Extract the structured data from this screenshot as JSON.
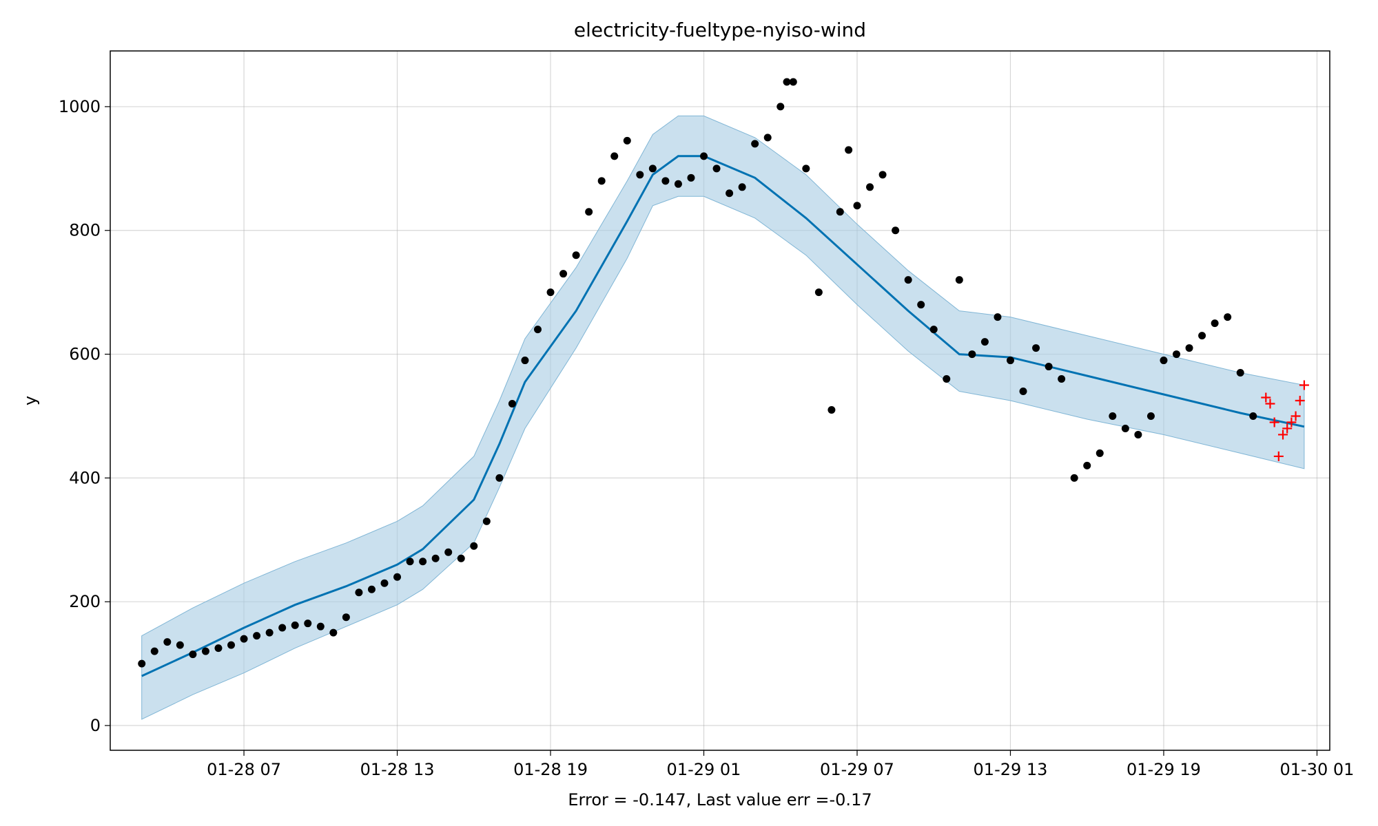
{
  "chart_data": {
    "type": "line",
    "title": "electricity-fueltype-nyiso-wind",
    "xlabel": "Error = -0.147, Last value err =-0.17",
    "ylabel": "y",
    "x_unit": "datetime",
    "xlim": [
      "2025-01-28T01:46",
      "2025-01-30T01:30"
    ],
    "ylim": [
      -40,
      1090
    ],
    "x_ticks": [
      "01-28 07",
      "01-28 13",
      "01-28 19",
      "01-29 01",
      "01-29 07",
      "01-29 13",
      "01-29 19",
      "01-30 01"
    ],
    "x_tick_values": [
      "2025-01-28T07:00",
      "2025-01-28T13:00",
      "2025-01-28T19:00",
      "2025-01-29T01:00",
      "2025-01-29T07:00",
      "2025-01-29T13:00",
      "2025-01-29T19:00",
      "2025-01-30T01:00"
    ],
    "y_ticks": [
      0,
      200,
      400,
      600,
      800,
      1000
    ],
    "grid": true,
    "colors": {
      "observed": "#000000",
      "forecast": "#0072B2",
      "band": "#A6CCE3",
      "band_edge": "#7FB5D5",
      "future": "#FF0000"
    },
    "forecast": {
      "x": [
        "2025-01-28T03:00",
        "2025-01-28T05:00",
        "2025-01-28T07:00",
        "2025-01-28T09:00",
        "2025-01-28T11:00",
        "2025-01-28T13:00",
        "2025-01-28T14:00",
        "2025-01-28T16:00",
        "2025-01-28T17:00",
        "2025-01-28T18:00",
        "2025-01-28T20:00",
        "2025-01-28T22:00",
        "2025-01-28T23:00",
        "2025-01-29T00:00",
        "2025-01-29T01:00",
        "2025-01-29T03:00",
        "2025-01-29T05:00",
        "2025-01-29T07:00",
        "2025-01-29T09:00",
        "2025-01-29T11:00",
        "2025-01-29T13:00",
        "2025-01-29T16:00",
        "2025-01-29T19:00",
        "2025-01-29T22:00",
        "2025-01-30T00:30"
      ],
      "yhat": [
        80,
        118,
        158,
        195,
        225,
        260,
        285,
        365,
        455,
        555,
        670,
        815,
        890,
        920,
        920,
        885,
        820,
        745,
        670,
        600,
        595,
        565,
        535,
        505,
        483
      ],
      "lower": [
        10,
        50,
        85,
        125,
        160,
        195,
        220,
        295,
        385,
        480,
        610,
        755,
        840,
        855,
        855,
        820,
        760,
        680,
        605,
        540,
        525,
        495,
        470,
        440,
        415
      ],
      "upper": [
        145,
        190,
        230,
        265,
        295,
        330,
        355,
        435,
        525,
        625,
        740,
        880,
        955,
        985,
        985,
        950,
        890,
        810,
        735,
        670,
        660,
        630,
        600,
        570,
        550
      ]
    },
    "observed": {
      "x": [
        "2025-01-28T03:00",
        "2025-01-28T03:30",
        "2025-01-28T04:00",
        "2025-01-28T04:30",
        "2025-01-28T05:00",
        "2025-01-28T05:30",
        "2025-01-28T06:00",
        "2025-01-28T06:30",
        "2025-01-28T07:00",
        "2025-01-28T07:30",
        "2025-01-28T08:00",
        "2025-01-28T08:30",
        "2025-01-28T09:00",
        "2025-01-28T09:30",
        "2025-01-28T10:00",
        "2025-01-28T10:30",
        "2025-01-28T11:00",
        "2025-01-28T11:30",
        "2025-01-28T12:00",
        "2025-01-28T12:30",
        "2025-01-28T13:00",
        "2025-01-28T13:30",
        "2025-01-28T14:00",
        "2025-01-28T14:30",
        "2025-01-28T15:00",
        "2025-01-28T15:30",
        "2025-01-28T16:00",
        "2025-01-28T16:30",
        "2025-01-28T17:00",
        "2025-01-28T17:30",
        "2025-01-28T18:00",
        "2025-01-28T18:30",
        "2025-01-28T19:00",
        "2025-01-28T19:30",
        "2025-01-28T20:00",
        "2025-01-28T20:30",
        "2025-01-28T21:00",
        "2025-01-28T21:30",
        "2025-01-28T22:00",
        "2025-01-28T22:30",
        "2025-01-28T23:00",
        "2025-01-28T23:30",
        "2025-01-29T00:00",
        "2025-01-29T00:30",
        "2025-01-29T01:00",
        "2025-01-29T01:30",
        "2025-01-29T02:00",
        "2025-01-29T02:30",
        "2025-01-29T03:00",
        "2025-01-29T03:30",
        "2025-01-29T04:00",
        "2025-01-29T04:15",
        "2025-01-29T04:30",
        "2025-01-29T05:00",
        "2025-01-29T05:30",
        "2025-01-29T06:00",
        "2025-01-29T06:20",
        "2025-01-29T06:40",
        "2025-01-29T07:00",
        "2025-01-29T07:30",
        "2025-01-29T08:00",
        "2025-01-29T08:30",
        "2025-01-29T09:00",
        "2025-01-29T09:30",
        "2025-01-29T10:00",
        "2025-01-29T10:30",
        "2025-01-29T11:00",
        "2025-01-29T11:30",
        "2025-01-29T12:00",
        "2025-01-29T12:30",
        "2025-01-29T13:00",
        "2025-01-29T13:30",
        "2025-01-29T14:00",
        "2025-01-29T14:30",
        "2025-01-29T15:00",
        "2025-01-29T15:30",
        "2025-01-29T16:00",
        "2025-01-29T16:30",
        "2025-01-29T17:00",
        "2025-01-29T17:30",
        "2025-01-29T18:00",
        "2025-01-29T18:30",
        "2025-01-29T19:00",
        "2025-01-29T19:30",
        "2025-01-29T20:00",
        "2025-01-29T20:30",
        "2025-01-29T21:00",
        "2025-01-29T21:30",
        "2025-01-29T22:00",
        "2025-01-29T22:30"
      ],
      "y": [
        100,
        120,
        135,
        130,
        115,
        120,
        125,
        130,
        140,
        145,
        150,
        158,
        162,
        165,
        160,
        150,
        175,
        215,
        220,
        230,
        240,
        265,
        265,
        270,
        280,
        270,
        290,
        330,
        400,
        520,
        590,
        640,
        700,
        730,
        760,
        830,
        880,
        920,
        945,
        890,
        900,
        880,
        875,
        885,
        920,
        900,
        860,
        870,
        940,
        950,
        1000,
        1040,
        1040,
        900,
        700,
        510,
        830,
        930,
        840,
        870,
        890,
        800,
        720,
        680,
        640,
        560,
        720,
        600,
        620,
        660,
        590,
        540,
        610,
        580,
        560,
        400,
        420,
        440,
        500,
        480,
        470,
        500,
        590,
        600,
        610,
        630,
        650,
        660,
        570,
        500
      ]
    },
    "future": {
      "x": [
        "2025-01-29T23:00",
        "2025-01-29T23:10",
        "2025-01-29T23:20",
        "2025-01-29T23:30",
        "2025-01-29T23:40",
        "2025-01-29T23:50",
        "2025-01-30T00:00",
        "2025-01-30T00:10",
        "2025-01-30T00:20",
        "2025-01-30T00:30"
      ],
      "y": [
        530,
        520,
        490,
        435,
        470,
        480,
        490,
        500,
        525,
        550
      ]
    }
  }
}
